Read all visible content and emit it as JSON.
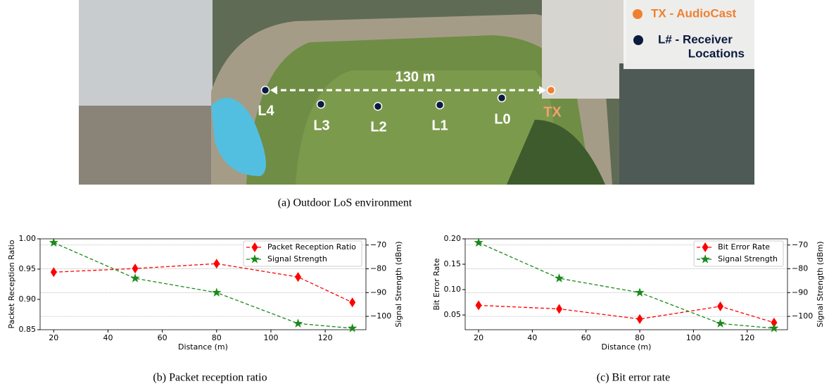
{
  "figure_a": {
    "caption": "(a)  Outdoor LoS environment",
    "distance": "130 m",
    "locations": [
      "L4",
      "L3",
      "L2",
      "L1",
      "L0",
      "TX"
    ],
    "legend": {
      "tx": "TX - AudioCast",
      "rx_line1": "L# - Receiver",
      "rx_line2": "Locations"
    }
  },
  "chart_data": [
    {
      "type": "line",
      "caption": "(b)  Packet reception ratio",
      "xlabel": "Distance (m)",
      "ylabel": "Packet Reception Ratio",
      "y2label": "Signal Strength (dBm)",
      "x": [
        20,
        50,
        80,
        110,
        130
      ],
      "series": [
        {
          "name": "Packet Reception Ratio",
          "color": "#ff0000",
          "marker": "diamond",
          "values": [
            0.945,
            0.951,
            0.959,
            0.937,
            0.895
          ]
        },
        {
          "name": "Signal Strength",
          "color": "#1a8a1a",
          "marker": "star",
          "axis": "y2",
          "values": [
            -69,
            -84,
            -90,
            -103,
            -105
          ]
        }
      ],
      "xlim": [
        15,
        135
      ],
      "xticks": [
        20,
        40,
        60,
        80,
        100,
        120
      ],
      "ylim": [
        0.85,
        1.0
      ],
      "yticks": [
        0.85,
        {
          "value": 0.9,
          "label": "0.90"
        },
        0.95,
        {
          "value": 1.0,
          "label": "1.00"
        }
      ],
      "y2lim": [
        -105.6,
        -67.4
      ],
      "y2ticks": [
        {
          "value": -70,
          "label": "−70"
        },
        {
          "value": -80,
          "label": "−80"
        },
        {
          "value": -90,
          "label": "−90"
        },
        {
          "value": -100,
          "label": "−100"
        }
      ],
      "grid": "y2",
      "legend": "upper right"
    },
    {
      "type": "line",
      "caption": "(c)  Bit error rate",
      "xlabel": "Distance (m)",
      "ylabel": "Bit Error Rate",
      "y2label": "Signal Strength (dBm)",
      "x": [
        20,
        50,
        80,
        110,
        130
      ],
      "series": [
        {
          "name": "Bit Error Rate",
          "color": "#ff0000",
          "marker": "diamond",
          "values": [
            0.069,
            0.062,
            0.042,
            0.067,
            0.035
          ]
        },
        {
          "name": "Signal Strength",
          "color": "#1a8a1a",
          "marker": "star",
          "axis": "y2",
          "values": [
            -69,
            -84,
            -90,
            -103,
            -105
          ]
        }
      ],
      "xlim": [
        15,
        135
      ],
      "xticks": [
        20,
        40,
        60,
        80,
        100,
        120
      ],
      "ylim": [
        0.021,
        0.2
      ],
      "yticks": [
        0.05,
        {
          "value": 0.1,
          "label": "0.10"
        },
        0.15,
        {
          "value": 0.2,
          "label": "0.20"
        }
      ],
      "y2lim": [
        -105.6,
        -67.4
      ],
      "y2ticks": [
        {
          "value": -70,
          "label": "−70"
        },
        {
          "value": -80,
          "label": "−80"
        },
        {
          "value": -90,
          "label": "−90"
        },
        {
          "value": -100,
          "label": "−100"
        }
      ],
      "grid": "y2",
      "legend": "upper right"
    }
  ]
}
